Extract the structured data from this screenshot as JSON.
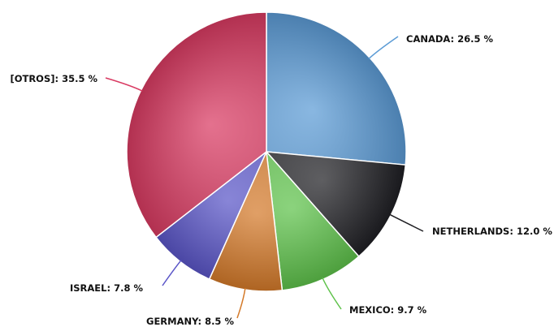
{
  "chart_data": {
    "type": "pie",
    "slices": [
      {
        "name": "CANADA",
        "value": 26.5,
        "label": "CANADA: 26.5 %",
        "color": "#5b9bd5"
      },
      {
        "name": "NETHERLANDS",
        "value": 12.0,
        "label": "NETHERLANDS: 12.0 %",
        "color": "#1f1f23"
      },
      {
        "name": "MEXICO",
        "value": 9.7,
        "label": "MEXICO: 9.7 %",
        "color": "#5ec24a"
      },
      {
        "name": "GERMANY",
        "value": 8.5,
        "label": "GERMANY: 8.5 %",
        "color": "#d47a2a"
      },
      {
        "name": "ISRAEL",
        "value": 7.8,
        "label": "ISRAEL: 7.8 %",
        "color": "#5a55c8"
      },
      {
        "name": "[OTROS]",
        "value": 35.5,
        "label": "[OTROS]: 35.5 %",
        "color": "#d93a62"
      }
    ],
    "start_angle_deg": 0,
    "direction": "clockwise",
    "legend": "none",
    "labels": "outside-with-leader-lines"
  }
}
